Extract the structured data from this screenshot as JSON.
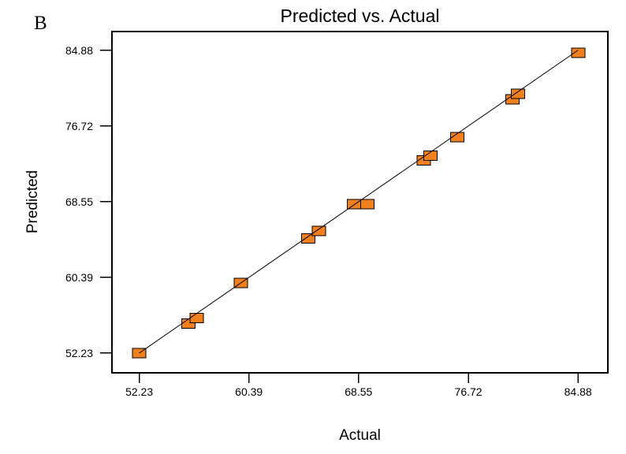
{
  "figure_label": "B",
  "chart": {
    "title": "Predicted vs. Actual",
    "xlabel": "Actual",
    "ylabel": "Predicted"
  },
  "colors": {
    "background": "#FFFFFF",
    "axis": "#000000",
    "text": "#000000",
    "marker_fill": "#F0801E",
    "marker_stroke": "#000000",
    "line": "#000000"
  },
  "chart_data": {
    "type": "scatter",
    "title": "Predicted vs. Actual",
    "xlabel": "Actual",
    "ylabel": "Predicted",
    "x_ticks": [
      52.23,
      60.39,
      68.55,
      76.72,
      84.88
    ],
    "y_ticks": [
      52.23,
      60.39,
      68.55,
      76.72,
      84.88
    ],
    "xlim": [
      50.2,
      87.1
    ],
    "ylim": [
      50.1,
      86.9
    ],
    "grid": false,
    "legend": "none",
    "marker": "filled-square",
    "identity_line": {
      "x1": 52.23,
      "y1": 52.23,
      "x2": 84.88,
      "y2": 84.88
    },
    "points": [
      {
        "actual": 52.23,
        "predicted": 52.23
      },
      {
        "actual": 55.9,
        "predicted": 55.4
      },
      {
        "actual": 56.5,
        "predicted": 56.0
      },
      {
        "actual": 59.8,
        "predicted": 59.8
      },
      {
        "actual": 64.8,
        "predicted": 64.6
      },
      {
        "actual": 65.6,
        "predicted": 65.4
      },
      {
        "actual": 68.2,
        "predicted": 68.3
      },
      {
        "actual": 69.2,
        "predicted": 68.3
      },
      {
        "actual": 73.4,
        "predicted": 73.0
      },
      {
        "actual": 73.9,
        "predicted": 73.5
      },
      {
        "actual": 75.9,
        "predicted": 75.5
      },
      {
        "actual": 80.0,
        "predicted": 79.6
      },
      {
        "actual": 80.4,
        "predicted": 80.2
      },
      {
        "actual": 84.9,
        "predicted": 84.6
      }
    ]
  }
}
